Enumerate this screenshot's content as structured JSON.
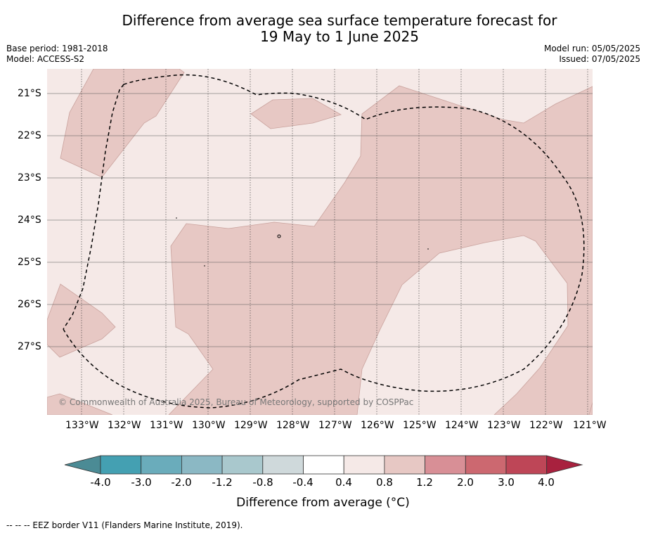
{
  "title": {
    "line1": "Difference from average sea surface temperature forecast for",
    "line2": "19 May to 1 June 2025"
  },
  "meta": {
    "base_period": "Base period: 1981-2018",
    "model": "Model: ACCESS-S2",
    "model_run": "Model run: 05/05/2025",
    "issued": "Issued: 07/05/2025"
  },
  "map": {
    "latitude_labels": [
      "21°S",
      "22°S",
      "23°S",
      "24°S",
      "25°S",
      "26°S",
      "27°S"
    ],
    "longitude_labels": [
      "133°W",
      "132°W",
      "131°W",
      "130°W",
      "129°W",
      "128°W",
      "127°W",
      "126°W",
      "125°W",
      "124°W",
      "123°W",
      "122°W",
      "121°W"
    ],
    "colors": {
      "band_0_4_to_0_8": "#f5e9e7",
      "band_0_8_to_1_2": "#e7c8c4",
      "contour_edge": "#c9a29d",
      "grid": "#555555",
      "eez_border": "#000000"
    },
    "copyright": "© Commonwealth of Australia 2025, Bureau of Meteorology, supported by COSPPac"
  },
  "colorbar": {
    "title": "Difference from average (°C)",
    "ticks": [
      "-4.0",
      "-3.0",
      "-2.0",
      "-1.2",
      "-0.8",
      "-0.4",
      "0.4",
      "0.8",
      "1.2",
      "2.0",
      "3.0",
      "4.0"
    ],
    "colors": [
      "#4b8b95",
      "#44a0b2",
      "#6aacbb",
      "#8bb8c4",
      "#a9c8cd",
      "#cfd9db",
      "#ffffff",
      "#f5e9e7",
      "#e7c8c4",
      "#d88f96",
      "#cc6870",
      "#be4657",
      "#a8213e"
    ]
  },
  "footer": "--  --  -- EEZ border V11 (Flanders Marine Institute, 2019)."
}
